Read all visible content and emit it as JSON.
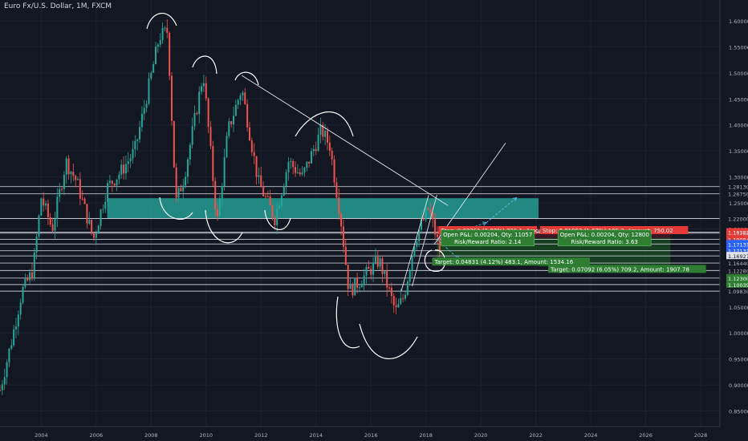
{
  "header": {
    "title": "Euro Fx/U.S. Dollar, 1M, FXCM"
  },
  "chart_data": {
    "type": "candlestick",
    "symbol": "Euro Fx/U.S. Dollar",
    "timeframe": "1M",
    "source": "FXCM",
    "xlim": [
      2002.5,
      2028.7
    ],
    "ylim": [
      0.82,
      1.64
    ],
    "x_ticks": [
      "2004",
      "2006",
      "2008",
      "2010",
      "2012",
      "2014",
      "2016",
      "2018",
      "2020",
      "2022",
      "2024",
      "2026",
      "2028"
    ],
    "y_ticks": [
      "0.85000",
      "0.90000",
      "0.95000",
      "1.00000",
      "1.05000",
      "1.10000",
      "1.15000",
      "1.20000",
      "1.25000",
      "1.30000",
      "1.35000",
      "1.40000",
      "1.45000",
      "1.50000",
      "1.55000",
      "1.60000"
    ],
    "price_levels": [
      {
        "label": "1.28130",
        "value": 1.2813,
        "style": "line"
      },
      {
        "label": "1.26750",
        "value": 1.2675,
        "style": "line"
      },
      {
        "label": "1.22000",
        "value": 1.22,
        "style": "line"
      },
      {
        "label": "1.19382",
        "value": 1.19382,
        "style": "red"
      },
      {
        "label": "1.19180",
        "value": 1.1918,
        "style": "line"
      },
      {
        "label": "1.19084",
        "value": 1.18,
        "style": "red"
      },
      {
        "label": "1.17131",
        "value": 1.171,
        "style": "blue"
      },
      {
        "label": "1.17131",
        "value": 1.158,
        "style": "blue"
      },
      {
        "label": "1.16927",
        "value": 1.148,
        "style": "white"
      },
      {
        "label": "1.16440",
        "value": 1.1344,
        "style": "line"
      },
      {
        "label": "1.12280",
        "value": 1.12,
        "style": "line"
      },
      {
        "label": "1.12300",
        "value": 1.1055,
        "style": "green"
      },
      {
        "label": "1.10039",
        "value": 1.093,
        "style": "green"
      },
      {
        "label": "1.09830",
        "value": 1.0803,
        "style": "line"
      }
    ],
    "support_zone": {
      "from_year": 2006.4,
      "to_year": 2022.1,
      "low": 1.2205,
      "high": 1.259,
      "color": "#26a69a"
    },
    "positions": [
      {
        "entry_year": 2018.4,
        "end_year": 2022.1,
        "entry": 1.1825,
        "stop": 1.2038,
        "target": 1.1418,
        "stop_label": "Stop: 0.02261 (1.93%) 226.1, Amount: 75",
        "pnl_label": "Open P&L: 0.00204, Qty: 11057",
        "rr_label": "Risk/Reward Ratio: 2.14",
        "target_label": "Target: 0.04831 (4.12%) 483.1, Amount: 1534.16"
      },
      {
        "entry_year": 2022.1,
        "end_year": 2026.9,
        "entry": 1.1825,
        "stop": 1.2038,
        "target": 1.1277,
        "stop_label": "Stop: 0.01953 (1.67%) 195.3, Amount: 750.02",
        "pnl_label": "Open P&L: 0.00204, Qty: 12800",
        "rr_label": "Risk/Reward Ratio: 3.63",
        "target_label": "Target: 0.07092 (6.05%) 709.2, Amount: 1907.78"
      }
    ],
    "monthly_path": [
      {
        "t": 2002.5,
        "v": 0.89
      },
      {
        "t": 2002.9,
        "v": 0.98
      },
      {
        "t": 2003.3,
        "v": 1.08
      },
      {
        "t": 2003.7,
        "v": 1.12
      },
      {
        "t": 2004.0,
        "v": 1.26
      },
      {
        "t": 2004.4,
        "v": 1.2
      },
      {
        "t": 2004.9,
        "v": 1.33
      },
      {
        "t": 2005.3,
        "v": 1.29
      },
      {
        "t": 2005.9,
        "v": 1.18
      },
      {
        "t": 2006.4,
        "v": 1.28
      },
      {
        "t": 2006.9,
        "v": 1.31
      },
      {
        "t": 2007.4,
        "v": 1.35
      },
      {
        "t": 2007.9,
        "v": 1.47
      },
      {
        "t": 2008.3,
        "v": 1.57
      },
      {
        "t": 2008.6,
        "v": 1.58
      },
      {
        "t": 2008.9,
        "v": 1.25
      },
      {
        "t": 2009.2,
        "v": 1.3
      },
      {
        "t": 2009.9,
        "v": 1.5
      },
      {
        "t": 2010.4,
        "v": 1.21
      },
      {
        "t": 2010.8,
        "v": 1.39
      },
      {
        "t": 2011.3,
        "v": 1.47
      },
      {
        "t": 2011.9,
        "v": 1.29
      },
      {
        "t": 2012.5,
        "v": 1.22
      },
      {
        "t": 2013.0,
        "v": 1.33
      },
      {
        "t": 2013.5,
        "v": 1.3
      },
      {
        "t": 2014.2,
        "v": 1.39
      },
      {
        "t": 2014.5,
        "v": 1.36
      },
      {
        "t": 2014.9,
        "v": 1.22
      },
      {
        "t": 2015.2,
        "v": 1.08
      },
      {
        "t": 2015.6,
        "v": 1.1
      },
      {
        "t": 2016.3,
        "v": 1.14
      },
      {
        "t": 2016.9,
        "v": 1.04
      },
      {
        "t": 2017.2,
        "v": 1.07
      },
      {
        "t": 2017.6,
        "v": 1.18
      },
      {
        "t": 2018.1,
        "v": 1.24
      },
      {
        "t": 2018.5,
        "v": 1.16
      }
    ],
    "annotations": {
      "trendlines": [
        {
          "from": [
            2011.3,
            1.495
          ],
          "to": [
            2018.8,
            1.245
          ]
        },
        {
          "from": [
            2017.1,
            1.08
          ],
          "to": [
            2018.1,
            1.265
          ]
        },
        {
          "from": [
            2017.5,
            1.09
          ],
          "to": [
            2018.4,
            1.265
          ]
        },
        {
          "from": [
            2018.3,
            1.17
          ],
          "to": [
            2020.9,
            1.365
          ]
        }
      ],
      "arrows": [
        {
          "from": [
            2018.4,
            1.18
          ],
          "to": [
            2020.2,
            1.212
          ]
        },
        {
          "from": [
            2020.2,
            1.212
          ],
          "to": [
            2021.3,
            1.26
          ]
        },
        {
          "from": [
            2018.4,
            1.18
          ],
          "to": [
            2019.2,
            1.142
          ]
        }
      ]
    }
  }
}
